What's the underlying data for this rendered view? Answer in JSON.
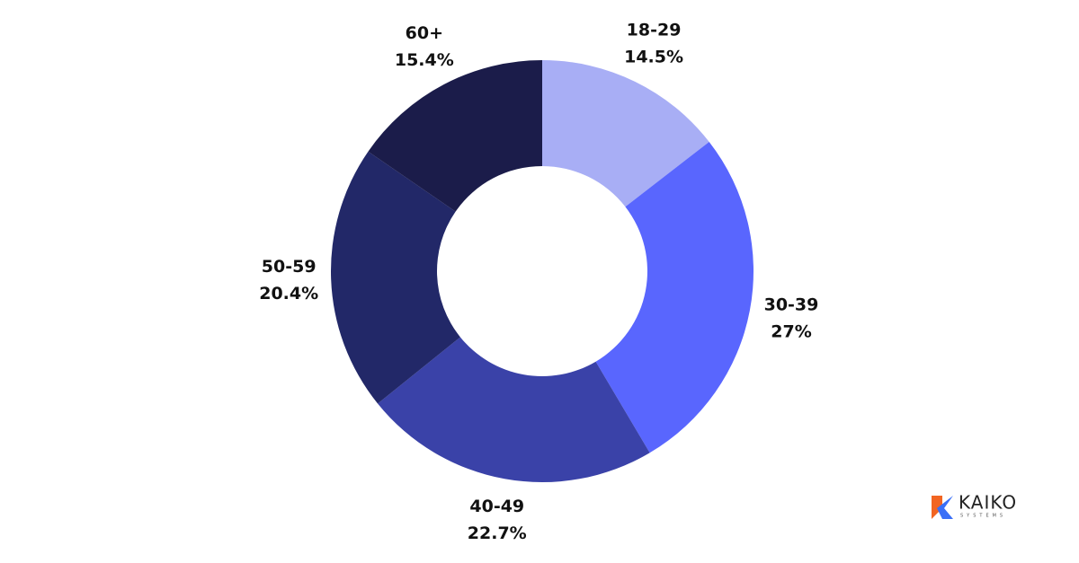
{
  "chart_data": {
    "type": "donut",
    "categories": [
      "18-29",
      "30-39",
      "40-49",
      "50-59",
      "60+"
    ],
    "values": [
      14.5,
      27,
      22.7,
      20.4,
      15.4
    ],
    "value_labels": [
      "14.5%",
      "27%",
      "22.7%",
      "20.4%",
      "15.4%"
    ],
    "colors": [
      "#a8aef5",
      "#5966fe",
      "#3a42a8",
      "#222868",
      "#1b1c4a"
    ]
  },
  "logo": {
    "name": "KAIKO",
    "tagline": "SYSTEMS"
  }
}
